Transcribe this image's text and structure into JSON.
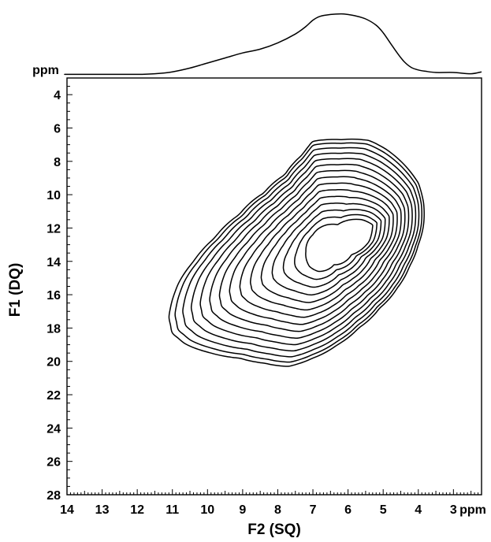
{
  "chart_data": {
    "type": "contour",
    "subtype": "2D NMR double-quantum / single-quantum correlation spectrum with 1D projection",
    "xlabel": "F2 (SQ)",
    "ylabel": "F1 (DQ)",
    "x_unit": "ppm",
    "y_unit": "ppm",
    "xlim": [
      14,
      2.2
    ],
    "ylim": [
      3,
      28
    ],
    "x_reversed": true,
    "y_inverted": true,
    "x_ticks": [
      14,
      13,
      12,
      11,
      10,
      9,
      8,
      7,
      6,
      5,
      4,
      3
    ],
    "y_ticks": [
      4,
      6,
      8,
      10,
      12,
      14,
      16,
      18,
      20,
      22,
      24,
      26,
      28
    ],
    "grid": false,
    "legend": "none",
    "line_color": "#000000",
    "peak_center": {
      "x": 6.6,
      "y": 13.3
    },
    "contours": {
      "levels": 15,
      "outer_boundary": [
        [
          7.0,
          6.8
        ],
        [
          6.2,
          6.7
        ],
        [
          5.4,
          6.75
        ],
        [
          4.9,
          7.3
        ],
        [
          4.4,
          8.2
        ],
        [
          4.0,
          9.3
        ],
        [
          3.85,
          10.5
        ],
        [
          3.85,
          11.8
        ],
        [
          4.0,
          13.0
        ],
        [
          4.25,
          14.3
        ],
        [
          4.6,
          15.6
        ],
        [
          5.1,
          16.8
        ],
        [
          5.7,
          18.0
        ],
        [
          6.3,
          19.0
        ],
        [
          7.0,
          19.8
        ],
        [
          7.7,
          20.3
        ],
        [
          8.4,
          20.1
        ],
        [
          9.1,
          19.8
        ],
        [
          9.9,
          19.5
        ],
        [
          10.6,
          19.0
        ],
        [
          11.0,
          18.3
        ],
        [
          11.1,
          17.3
        ],
        [
          11.0,
          16.3
        ],
        [
          10.8,
          15.2
        ],
        [
          10.4,
          14.0
        ],
        [
          9.8,
          12.6
        ],
        [
          9.1,
          11.2
        ],
        [
          8.4,
          9.9
        ],
        [
          7.8,
          8.8
        ],
        [
          7.3,
          7.6
        ]
      ],
      "inner_boundary": [
        [
          6.3,
          11.8
        ],
        [
          5.6,
          11.5
        ],
        [
          5.3,
          11.8
        ],
        [
          5.4,
          12.8
        ],
        [
          5.9,
          13.6
        ],
        [
          6.4,
          14.2
        ],
        [
          6.85,
          14.6
        ],
        [
          7.1,
          14.3
        ],
        [
          7.2,
          13.4
        ],
        [
          7.0,
          12.4
        ]
      ]
    },
    "projection": {
      "axis": "F2",
      "label": "ppm",
      "x": [
        14.0,
        13.0,
        12.0,
        11.5,
        11.0,
        10.5,
        10.0,
        9.5,
        9.0,
        8.5,
        8.0,
        7.5,
        7.2,
        7.0,
        6.8,
        6.5,
        6.2,
        6.0,
        5.8,
        5.5,
        5.2,
        5.0,
        4.8,
        4.6,
        4.4,
        4.2,
        4.0,
        3.8,
        3.5,
        3.0,
        2.5,
        2.2
      ],
      "y": [
        0.02,
        0.02,
        0.02,
        0.03,
        0.06,
        0.12,
        0.2,
        0.28,
        0.36,
        0.42,
        0.52,
        0.66,
        0.78,
        0.88,
        0.94,
        0.97,
        0.98,
        0.97,
        0.95,
        0.9,
        0.8,
        0.68,
        0.52,
        0.36,
        0.22,
        0.13,
        0.09,
        0.07,
        0.05,
        0.05,
        0.03,
        0.06
      ]
    }
  }
}
